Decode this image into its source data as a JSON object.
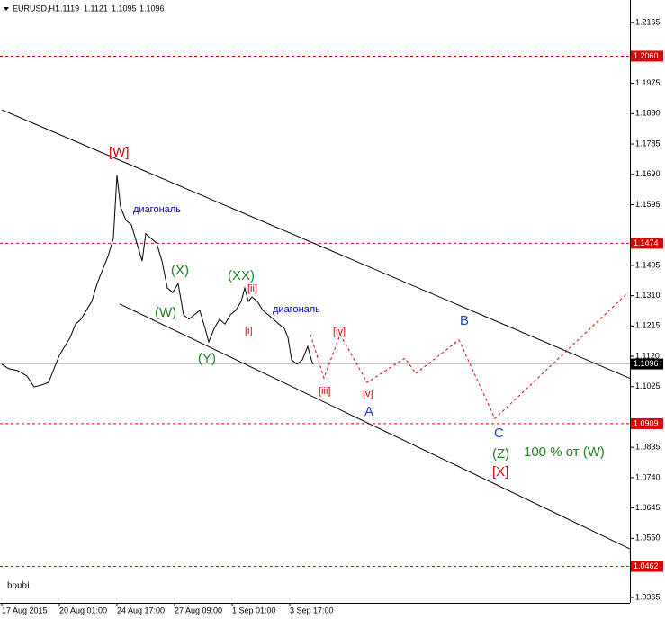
{
  "chart_data": {
    "type": "line",
    "header": {
      "symbol": "EURUSD,H1",
      "ohlc": [
        1.1119,
        1.1121,
        1.1095,
        1.1096
      ]
    },
    "footer": "boubi",
    "xlim": [
      0,
      698
    ],
    "xticks": [
      {
        "value": 0,
        "label": "17 Aug 2015"
      },
      {
        "value": 64,
        "label": "20 Aug 01:00"
      },
      {
        "value": 128,
        "label": "24 Aug 17:00"
      },
      {
        "value": 192,
        "label": "27 Aug 09:00"
      },
      {
        "value": 256,
        "label": "1 Sep 01:00"
      },
      {
        "value": 320,
        "label": "3 Sep 17:00"
      }
    ],
    "ylim": [
      1.0348,
      1.2236
    ],
    "yticks": [
      {
        "value": 1.2165,
        "label": "1.2165"
      },
      {
        "value": 1.1975,
        "label": "1.1975"
      },
      {
        "value": 1.188,
        "label": "1.1880"
      },
      {
        "value": 1.1785,
        "label": "1.1785"
      },
      {
        "value": 1.169,
        "label": "1.1690"
      },
      {
        "value": 1.1595,
        "label": "1.1595"
      },
      {
        "value": 1.1405,
        "label": "1.1405"
      },
      {
        "value": 1.131,
        "label": "1.1310"
      },
      {
        "value": 1.1215,
        "label": "1.1215"
      },
      {
        "value": 1.112,
        "label": "1.1120"
      },
      {
        "value": 1.1025,
        "label": "1.1025"
      },
      {
        "value": 1.0835,
        "label": "1.0835"
      },
      {
        "value": 1.074,
        "label": "1.0740"
      },
      {
        "value": 1.0645,
        "label": "1.0645"
      },
      {
        "value": 1.055,
        "label": "1.0550"
      },
      {
        "value": 1.0365,
        "label": "1.0365"
      }
    ],
    "levels": [
      {
        "value": 1.206,
        "label": "1.2060"
      },
      {
        "value": 1.1474,
        "label": "1.1474"
      },
      {
        "value": 1.0909,
        "label": "1.0909"
      },
      {
        "value": 1.0462,
        "label": "1.0462"
      }
    ],
    "level_color": "#e00000",
    "current_price": {
      "value": 1.1096,
      "label": "1.1096"
    },
    "series": [
      {
        "name": "EURUSD",
        "color": "#000000",
        "x": [
          0,
          8,
          18,
          28,
          36,
          44,
          52,
          58,
          64,
          70,
          76,
          82,
          88,
          94,
          100,
          106,
          112,
          118,
          124,
          128,
          132,
          138,
          144,
          150,
          156,
          160,
          166,
          172,
          178,
          184,
          190,
          196,
          202,
          208,
          214,
          220,
          226,
          230,
          236,
          242,
          248,
          254,
          260,
          266,
          270,
          274,
          278,
          284,
          290,
          296,
          302,
          308,
          314,
          318,
          322,
          328,
          334,
          340,
          344,
          346
        ],
        "values": [
          1.1095,
          1.1081,
          1.1075,
          1.1058,
          1.1024,
          1.103,
          1.1038,
          1.1081,
          1.1123,
          1.1151,
          1.1179,
          1.1221,
          1.1236,
          1.1264,
          1.1292,
          1.1348,
          1.1391,
          1.1433,
          1.1489,
          1.1687,
          1.1588,
          1.1546,
          1.1532,
          1.1475,
          1.1419,
          1.1504,
          1.1489,
          1.1475,
          1.1419,
          1.1334,
          1.132,
          1.1348,
          1.125,
          1.1236,
          1.125,
          1.1264,
          1.1207,
          1.1165,
          1.1207,
          1.1236,
          1.1221,
          1.125,
          1.1264,
          1.1292,
          1.1334,
          1.1292,
          1.1306,
          1.1292,
          1.1264,
          1.125,
          1.1236,
          1.1221,
          1.1207,
          1.1179,
          1.1109,
          1.1095,
          1.1109,
          1.1151,
          1.1109,
          1.1095
        ]
      },
      {
        "name": "projection",
        "color": "#e00000",
        "x": [
          343,
          358,
          376,
          406,
          448,
          460,
          508,
          548,
          598,
          696
        ],
        "values": [
          1.1188,
          1.1052,
          1.1188,
          1.1038,
          1.1114,
          1.1066,
          1.1171,
          1.0925,
          1.1058,
          1.132
        ]
      }
    ],
    "channel": [
      {
        "x": [
          0,
          698
        ],
        "values": [
          1.1892,
          1.1051
        ]
      },
      {
        "x": [
          131,
          698
        ],
        "values": [
          1.1284,
          1.0517
        ]
      }
    ],
    "annotations": [
      {
        "text": "[W]",
        "color": "#e00000"
      },
      {
        "text": "диагональ",
        "color": "#0000c0"
      },
      {
        "text": "(X)",
        "color": "#208020"
      },
      {
        "text": "(W)",
        "color": "#208020"
      },
      {
        "text": "(Y)",
        "color": "#208020"
      },
      {
        "text": "(XX)",
        "color": "#208020"
      },
      {
        "text": "[ii]",
        "color": "#e00000"
      },
      {
        "text": "[i]",
        "color": "#e00000"
      },
      {
        "text": "диагональ",
        "color": "#0000c0"
      },
      {
        "text": "[iv]",
        "color": "#e00000"
      },
      {
        "text": "[iii]",
        "color": "#e00000"
      },
      {
        "text": "[v]",
        "color": "#e00000"
      },
      {
        "text": "A",
        "color": "#2040c0"
      },
      {
        "text": "B",
        "color": "#2040c0"
      },
      {
        "text": "C",
        "color": "#2040c0"
      },
      {
        "text": "(Z)",
        "color": "#208020"
      },
      {
        "text": "100 %  от (W)",
        "color": "#208020"
      },
      {
        "text": "[X]",
        "color": "#e00000"
      }
    ]
  }
}
